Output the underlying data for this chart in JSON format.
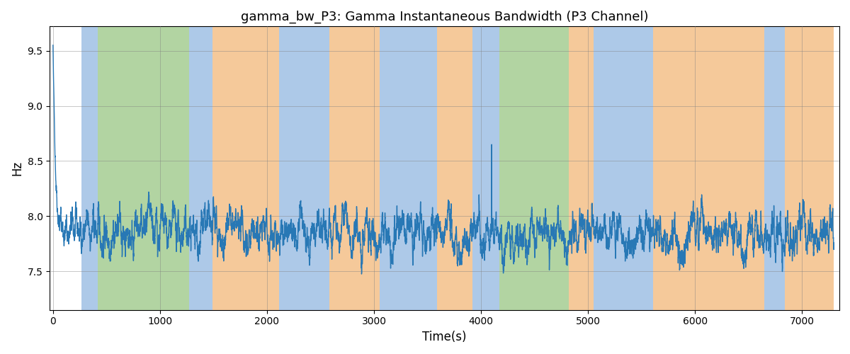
{
  "title": "gamma_bw_P3: Gamma Instantaneous Bandwidth (P3 Channel)",
  "xlabel": "Time(s)",
  "ylabel": "Hz",
  "xlim": [
    -30,
    7350
  ],
  "ylim": [
    7.15,
    9.72
  ],
  "line_color": "#2878b5",
  "line_width": 1.0,
  "background_color": "#ffffff",
  "bands": [
    {
      "start": 265,
      "end": 420,
      "color": "#adc9e8"
    },
    {
      "start": 420,
      "end": 1270,
      "color": "#b2d4a2"
    },
    {
      "start": 1270,
      "end": 1490,
      "color": "#adc9e8"
    },
    {
      "start": 1490,
      "end": 2110,
      "color": "#f5c99a"
    },
    {
      "start": 2110,
      "end": 2580,
      "color": "#adc9e8"
    },
    {
      "start": 2580,
      "end": 3050,
      "color": "#f5c99a"
    },
    {
      "start": 3050,
      "end": 3590,
      "color": "#adc9e8"
    },
    {
      "start": 3590,
      "end": 3920,
      "color": "#f5c99a"
    },
    {
      "start": 3920,
      "end": 4030,
      "color": "#adc9e8"
    },
    {
      "start": 4030,
      "end": 4170,
      "color": "#adc9e8"
    },
    {
      "start": 4170,
      "end": 4820,
      "color": "#b2d4a2"
    },
    {
      "start": 4820,
      "end": 5050,
      "color": "#f5c99a"
    },
    {
      "start": 5050,
      "end": 5610,
      "color": "#adc9e8"
    },
    {
      "start": 5610,
      "end": 6650,
      "color": "#f5c99a"
    },
    {
      "start": 6650,
      "end": 6840,
      "color": "#adc9e8"
    },
    {
      "start": 6840,
      "end": 7300,
      "color": "#f5c99a"
    }
  ],
  "seed": 42,
  "n_points": 7300,
  "base_value": 7.85,
  "ar_coef": 0.92,
  "noise_std": 0.045,
  "spike_time": 4100,
  "spike_val": 8.65
}
